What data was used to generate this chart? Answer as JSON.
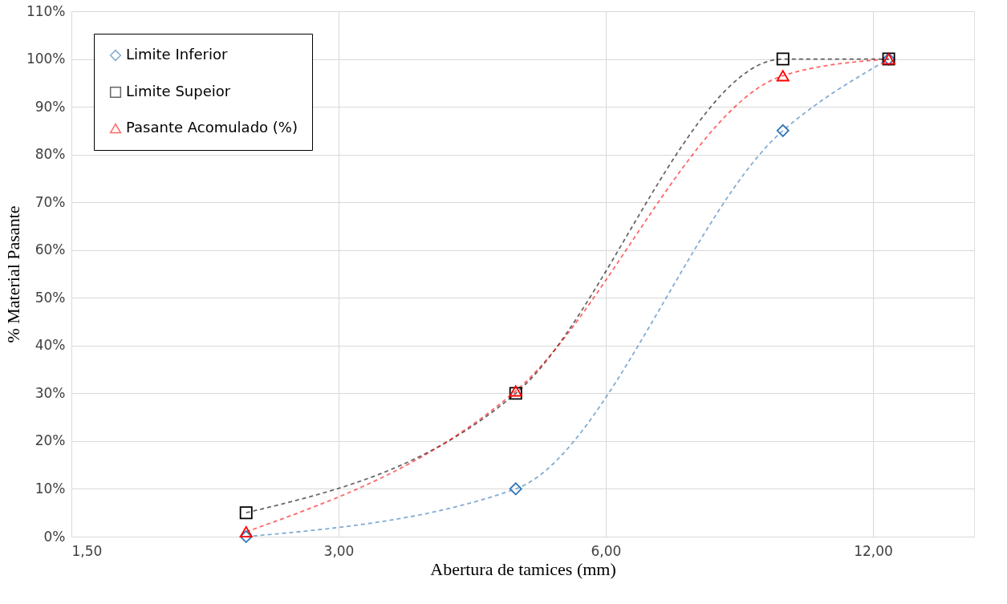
{
  "chart_data": {
    "type": "line",
    "xlabel": "Abertura de tamices (mm)",
    "ylabel": "% Material Pasante",
    "x": [
      2.36,
      4.75,
      9.5,
      12.5
    ],
    "series": [
      {
        "name": "Limite Inferior",
        "color": "#2e75b6",
        "marker": "diamond",
        "values": [
          0,
          10,
          85,
          100
        ]
      },
      {
        "name": "Limite Supeior",
        "color": "#000000",
        "marker": "square",
        "values": [
          5,
          30,
          100,
          100
        ]
      },
      {
        "name": "Pasante Acomulado (%)",
        "color": "#ff0000",
        "marker": "triangle",
        "values": [
          1,
          30.5,
          96.5,
          100
        ]
      }
    ],
    "log": "x",
    "xlim": [
      1.5,
      15.6
    ],
    "xticks": [
      {
        "value": 1.5,
        "label": "1,50"
      },
      {
        "value": 3,
        "label": "3,00"
      },
      {
        "value": 6,
        "label": "6,00"
      },
      {
        "value": 12,
        "label": "12,00"
      }
    ],
    "ylim": [
      0,
      110
    ],
    "yticks": [
      {
        "value": 0,
        "label": "0%"
      },
      {
        "value": 10,
        "label": "10%"
      },
      {
        "value": 20,
        "label": "20%"
      },
      {
        "value": 30,
        "label": "30%"
      },
      {
        "value": 40,
        "label": "40%"
      },
      {
        "value": 50,
        "label": "50%"
      },
      {
        "value": 60,
        "label": "60%"
      },
      {
        "value": 70,
        "label": "70%"
      },
      {
        "value": 80,
        "label": "80%"
      },
      {
        "value": 90,
        "label": "90%"
      },
      {
        "value": 100,
        "label": "100%"
      },
      {
        "value": 110,
        "label": "110%"
      }
    ],
    "grid": true,
    "legend": "top left",
    "line_style": "dashed"
  }
}
